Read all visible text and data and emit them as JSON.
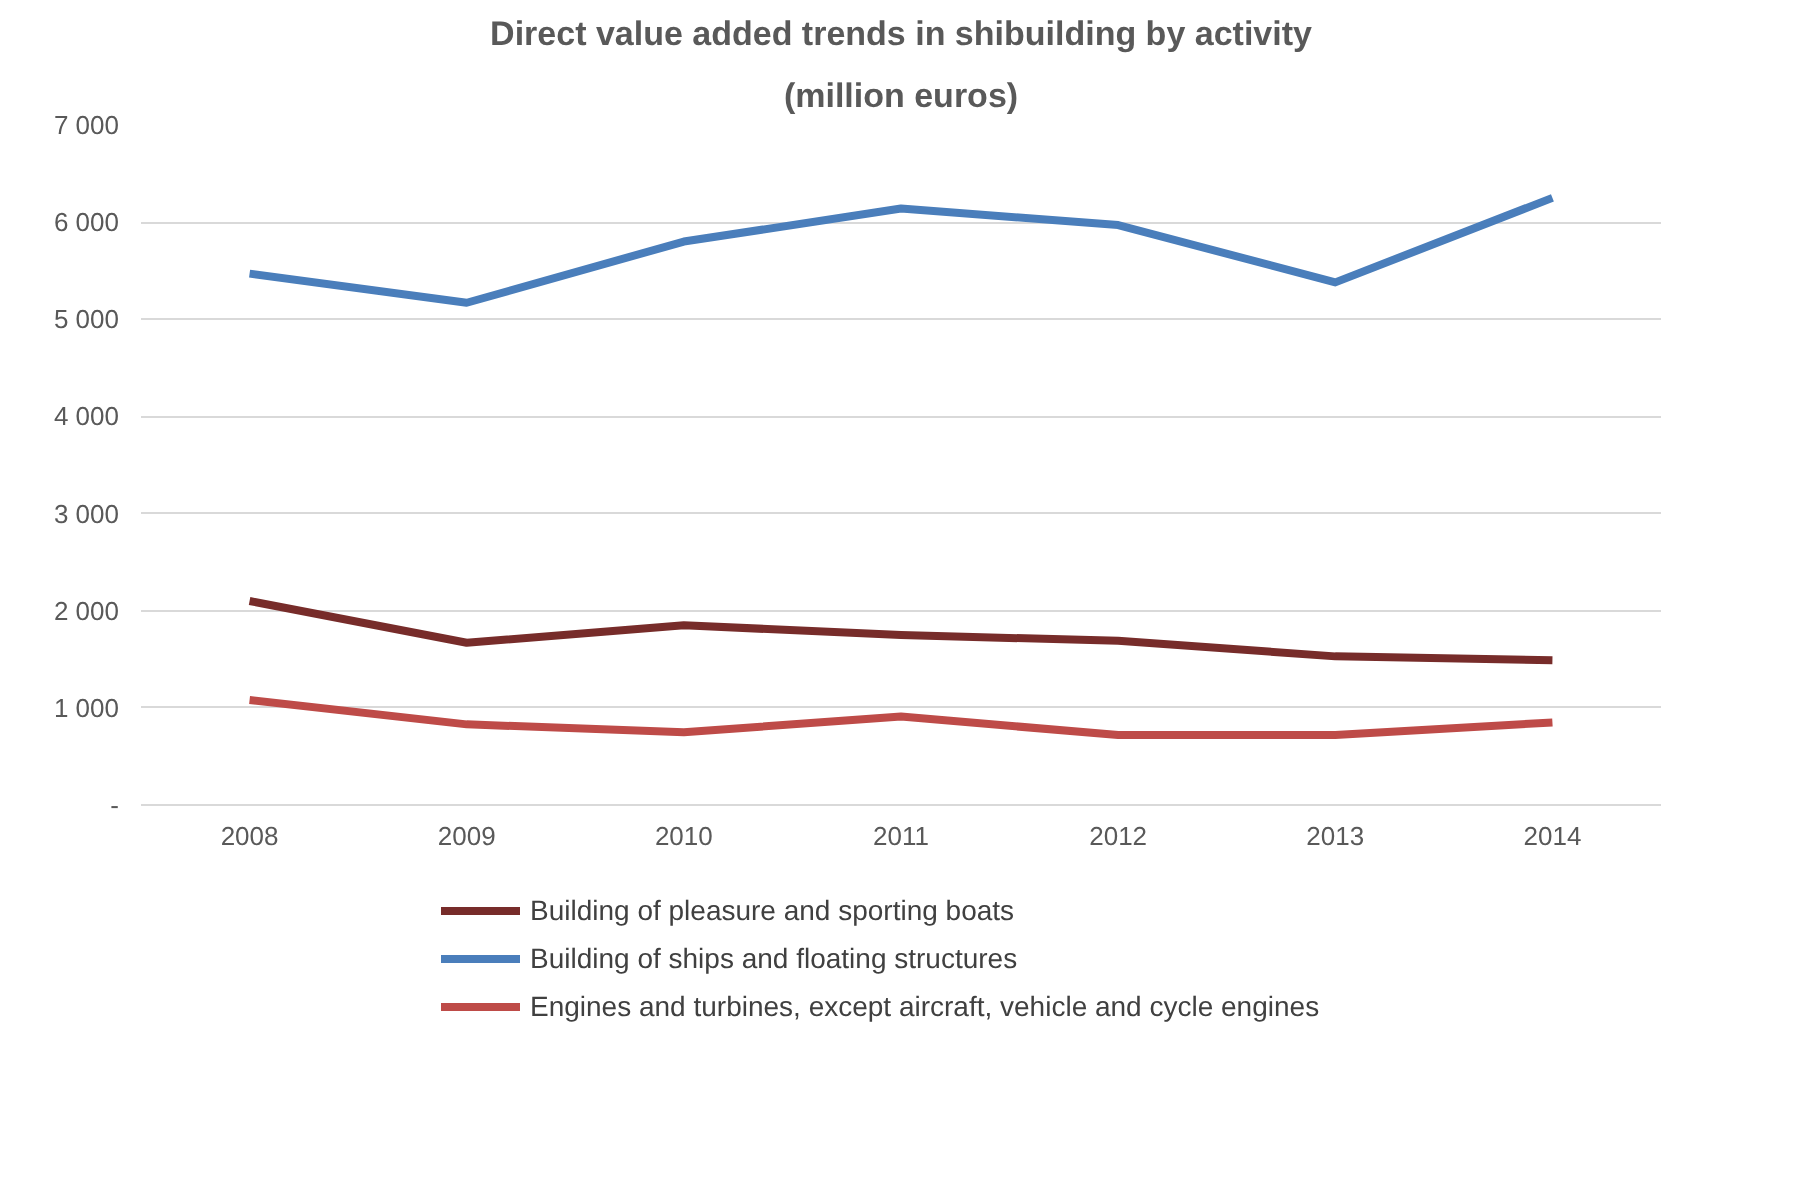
{
  "chart_data": {
    "type": "line",
    "title": "Direct value added trends in shibuilding by activity",
    "subtitle": "(million euros)",
    "categories": [
      "2008",
      "2009",
      "2010",
      "2011",
      "2012",
      "2013",
      "2014"
    ],
    "series": [
      {
        "name": "Building of pleasure and sporting boats",
        "color": "#772c2a",
        "values": [
          2100,
          1670,
          1850,
          1750,
          1690,
          1530,
          1490
        ]
      },
      {
        "name": "Building of ships and floating structures",
        "color": "#4a7ebb",
        "values": [
          5470,
          5170,
          5800,
          6140,
          5970,
          5380,
          6250
        ]
      },
      {
        "name": "Engines and turbines, except aircraft, vehicle and cycle engines",
        "color": "#be4b48",
        "values": [
          1080,
          830,
          750,
          910,
          720,
          720,
          850
        ]
      }
    ],
    "ylim": [
      0,
      7000
    ],
    "yticks": [
      {
        "value": 0,
        "label": "-"
      },
      {
        "value": 1000,
        "label": "1 000"
      },
      {
        "value": 2000,
        "label": "2 000"
      },
      {
        "value": 3000,
        "label": "3 000"
      },
      {
        "value": 4000,
        "label": "4 000"
      },
      {
        "value": 5000,
        "label": "5 000"
      },
      {
        "value": 6000,
        "label": "6 000"
      },
      {
        "value": 7000,
        "label": "7 000"
      }
    ],
    "grid": "y",
    "legend": "bottom",
    "marker": "none",
    "line_style": "solid"
  }
}
